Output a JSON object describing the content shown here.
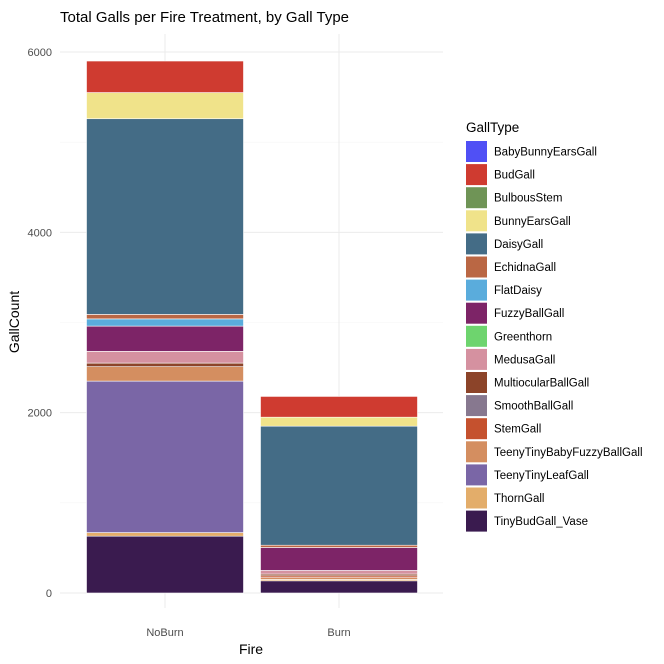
{
  "chart_data": {
    "type": "bar",
    "stacked": true,
    "title": "Total Galls per Fire Treatment, by Gall Type",
    "xlabel": "Fire",
    "ylabel": "GallCount",
    "categories": [
      "NoBurn",
      "Burn"
    ],
    "ylim": [
      0,
      6200
    ],
    "yticks": [
      0,
      2000,
      4000,
      6000
    ],
    "grid": true,
    "legend": {
      "title": "GallType",
      "position": "right"
    },
    "series": [
      {
        "name": "BabyBunnyEarsGall",
        "color": "#5050f5",
        "values": [
          0,
          0
        ]
      },
      {
        "name": "BudGall",
        "color": "#cf3b30",
        "values": [
          350,
          230
        ]
      },
      {
        "name": "BulbousStem",
        "color": "#6f9456",
        "values": [
          0,
          0
        ]
      },
      {
        "name": "BunnyEarsGall",
        "color": "#f0e38a",
        "values": [
          290,
          100
        ]
      },
      {
        "name": "DaisyGall",
        "color": "#446c86",
        "values": [
          2170,
          1320
        ]
      },
      {
        "name": "EchidnaGall",
        "color": "#ba6744",
        "values": [
          50,
          25
        ]
      },
      {
        "name": "FlatDaisy",
        "color": "#5aacdc",
        "values": [
          80,
          0
        ]
      },
      {
        "name": "FuzzyBallGall",
        "color": "#7d2467",
        "values": [
          280,
          255
        ]
      },
      {
        "name": "Greenthorn",
        "color": "#6ed46e",
        "values": [
          0,
          0
        ]
      },
      {
        "name": "MedusaGall",
        "color": "#d591a0",
        "values": [
          130,
          40
        ]
      },
      {
        "name": "MultiocularBallGall",
        "color": "#8c4429",
        "values": [
          40,
          20
        ]
      },
      {
        "name": "SmoothBallGall",
        "color": "#87788f",
        "values": [
          0,
          0
        ]
      },
      {
        "name": "StemGall",
        "color": "#c5512e",
        "values": [
          0,
          20
        ]
      },
      {
        "name": "TeenyTinyBabyFuzzyBallGall",
        "color": "#d48e60",
        "values": [
          160,
          20
        ]
      },
      {
        "name": "TeenyTinyLeafGall",
        "color": "#7a66a6",
        "values": [
          1680,
          0
        ]
      },
      {
        "name": "ThornGall",
        "color": "#e3ad6a",
        "values": [
          40,
          15
        ]
      },
      {
        "name": "TinyBudGall_Vase",
        "color": "#3a1b4f",
        "values": [
          630,
          135
        ]
      }
    ]
  }
}
